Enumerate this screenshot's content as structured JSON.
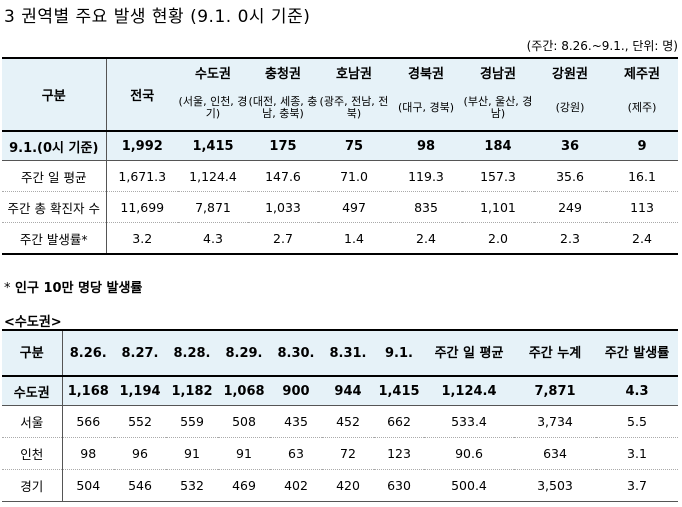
{
  "title": "3 권역별 주요 발생 현황 (9.1. 0시 기준)",
  "unit_note": "(주간: 8.26.~9.1., 단위: 명)",
  "table1": {
    "corner": "구분",
    "headers": [
      {
        "name": "전국",
        "sub": ""
      },
      {
        "name": "수도권",
        "sub": "(서울, 인천, 경기)"
      },
      {
        "name": "충청권",
        "sub": "(대전, 세종, 충남, 충북)"
      },
      {
        "name": "호남권",
        "sub": "(광주, 전남, 전북)"
      },
      {
        "name": "경북권",
        "sub": "(대구, 경북)"
      },
      {
        "name": "경남권",
        "sub": "(부산, 울산, 경남)"
      },
      {
        "name": "강원권",
        "sub": "(강원)"
      },
      {
        "name": "제주권",
        "sub": "(제주)"
      }
    ],
    "rows": [
      {
        "label": "9.1.(0시 기준)",
        "values": [
          "1,992",
          "1,415",
          "175",
          "75",
          "98",
          "184",
          "36",
          "9"
        ]
      },
      {
        "label": "주간 일 평균",
        "values": [
          "1,671.3",
          "1,124.4",
          "147.6",
          "71.0",
          "119.3",
          "157.3",
          "35.6",
          "16.1"
        ]
      },
      {
        "label": "주간 총 확진자 수",
        "values": [
          "11,699",
          "7,871",
          "1,033",
          "497",
          "835",
          "1,101",
          "249",
          "113"
        ]
      },
      {
        "label": "주간 발생률*",
        "values": [
          "3.2",
          "4.3",
          "2.7",
          "1.4",
          "2.4",
          "2.0",
          "2.3",
          "2.4"
        ]
      }
    ]
  },
  "footnote_star": "*",
  "footnote": "인구 10만 명당 발생률",
  "section_label": "<수도권>",
  "table2": {
    "headers": [
      "구분",
      "8.26.",
      "8.27.",
      "8.28.",
      "8.29.",
      "8.30.",
      "8.31.",
      "9.1.",
      "주간 일 평균",
      "주간 누계",
      "주간 발생률"
    ],
    "rows": [
      {
        "label": "수도권",
        "values": [
          "1,168",
          "1,194",
          "1,182",
          "1,068",
          "900",
          "944",
          "1,415",
          "1,124.4",
          "7,871",
          "4.3"
        ]
      },
      {
        "label": "서울",
        "values": [
          "566",
          "552",
          "559",
          "508",
          "435",
          "452",
          "662",
          "533.4",
          "3,734",
          "5.5"
        ]
      },
      {
        "label": "인천",
        "values": [
          "98",
          "96",
          "91",
          "91",
          "63",
          "72",
          "123",
          "90.6",
          "634",
          "3.1"
        ]
      },
      {
        "label": "경기",
        "values": [
          "504",
          "546",
          "532",
          "469",
          "402",
          "420",
          "630",
          "500.4",
          "3,503",
          "3.7"
        ]
      }
    ]
  }
}
